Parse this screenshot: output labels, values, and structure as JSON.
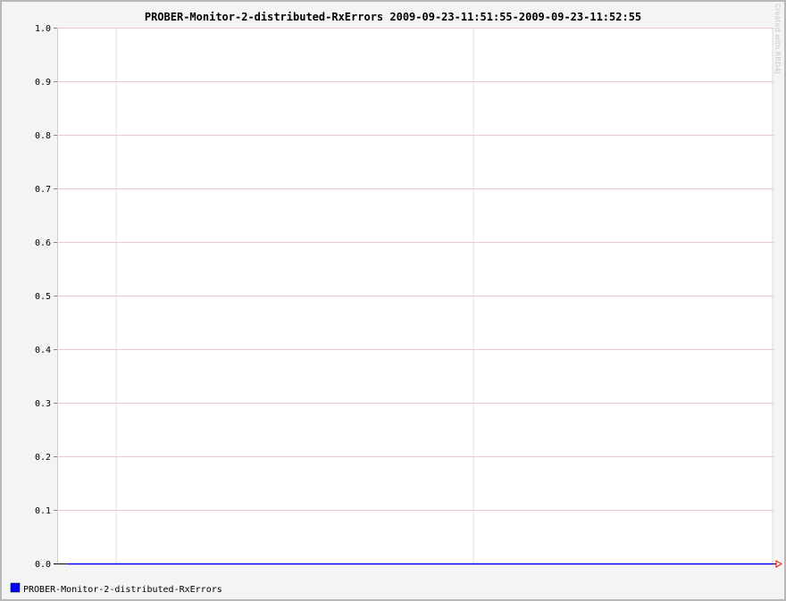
{
  "chart_data": {
    "type": "line",
    "title": "PROBER-Monitor-2-distributed-RxErrors 2009-09-23-11:51:55-2009-09-23-11:52:55",
    "xlabel": "",
    "ylabel": "",
    "ylim": [
      0,
      1.0
    ],
    "yticks": [
      "0.0",
      "0.1",
      "0.2",
      "0.3",
      "0.4",
      "0.5",
      "0.6",
      "0.7",
      "0.8",
      "0.9",
      "1.0"
    ],
    "grid": true,
    "legend_position": "bottom-left",
    "series": [
      {
        "name": "PROBER-Monitor-2-distributed-RxErrors",
        "color": "#0000ff",
        "x": [
          0,
          1
        ],
        "values": [
          0.0,
          0.0
        ]
      }
    ]
  },
  "watermark": "Created with RRD4J",
  "colors": {
    "background": "#f4f4f4",
    "plot_area": "#ffffff",
    "major_grid": "#f0c8c8",
    "minor_grid": "#dddddd",
    "axis": "#000000",
    "arrow": "#ff0000"
  }
}
